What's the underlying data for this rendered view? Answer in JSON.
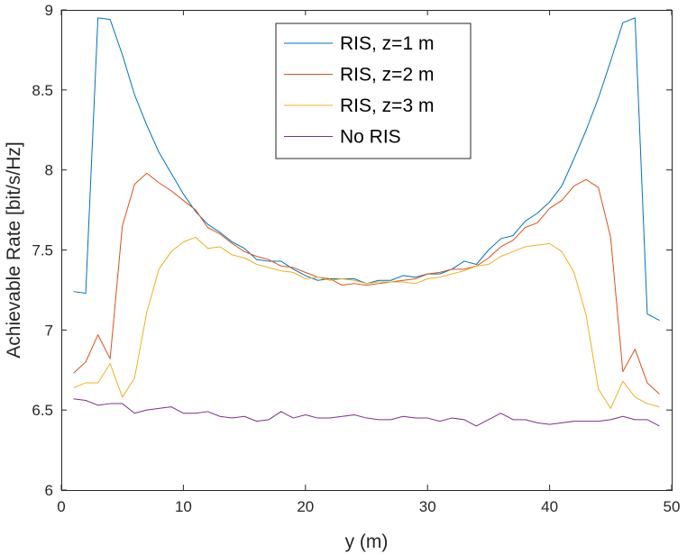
{
  "chart_data": {
    "type": "line",
    "xlabel": "y (m)",
    "ylabel": "Achievable Rate [bit/s/Hz]",
    "xlim": [
      0,
      50
    ],
    "ylim": [
      6,
      9
    ],
    "xticks": [
      "0",
      "10",
      "20",
      "30",
      "40",
      "50"
    ],
    "yticks": [
      "6",
      "6.5",
      "7",
      "7.5",
      "8",
      "8.5",
      "9"
    ],
    "grid": false,
    "legend_position": "top-center",
    "x": [
      1,
      2,
      3,
      4,
      5,
      6,
      7,
      8,
      9,
      10,
      11,
      12,
      13,
      14,
      15,
      16,
      17,
      18,
      19,
      20,
      21,
      22,
      23,
      24,
      25,
      26,
      27,
      28,
      29,
      30,
      31,
      32,
      33,
      34,
      35,
      36,
      37,
      38,
      39,
      40,
      41,
      42,
      43,
      44,
      45,
      46,
      47,
      48,
      49
    ],
    "series": [
      {
        "name": "RIS, z=1 m",
        "color": "#0072BD",
        "values": [
          7.24,
          7.23,
          8.95,
          8.94,
          8.72,
          8.47,
          8.28,
          8.11,
          7.98,
          7.85,
          7.74,
          7.66,
          7.61,
          7.55,
          7.51,
          7.44,
          7.43,
          7.43,
          7.38,
          7.34,
          7.31,
          7.32,
          7.32,
          7.32,
          7.29,
          7.31,
          7.31,
          7.34,
          7.33,
          7.35,
          7.35,
          7.38,
          7.43,
          7.41,
          7.5,
          7.57,
          7.59,
          7.68,
          7.73,
          7.8,
          7.9,
          8.07,
          8.25,
          8.45,
          8.68,
          8.92,
          8.95,
          7.1,
          7.06
        ]
      },
      {
        "name": "RIS, z=2 m",
        "color": "#D95319",
        "values": [
          6.73,
          6.8,
          6.97,
          6.82,
          7.65,
          7.91,
          7.98,
          7.92,
          7.87,
          7.81,
          7.75,
          7.64,
          7.6,
          7.54,
          7.49,
          7.46,
          7.44,
          7.4,
          7.39,
          7.36,
          7.33,
          7.32,
          7.28,
          7.29,
          7.28,
          7.29,
          7.3,
          7.31,
          7.32,
          7.35,
          7.36,
          7.38,
          7.38,
          7.4,
          7.45,
          7.52,
          7.56,
          7.64,
          7.67,
          7.76,
          7.81,
          7.9,
          7.94,
          7.89,
          7.58,
          6.74,
          6.88,
          6.67,
          6.6
        ]
      },
      {
        "name": "RIS, z=3 m",
        "color": "#EDB120",
        "values": [
          6.64,
          6.67,
          6.67,
          6.79,
          6.58,
          6.7,
          7.11,
          7.38,
          7.49,
          7.55,
          7.58,
          7.51,
          7.52,
          7.47,
          7.45,
          7.41,
          7.39,
          7.37,
          7.36,
          7.32,
          7.33,
          7.31,
          7.32,
          7.31,
          7.29,
          7.3,
          7.3,
          7.3,
          7.29,
          7.32,
          7.33,
          7.35,
          7.37,
          7.4,
          7.41,
          7.46,
          7.49,
          7.52,
          7.53,
          7.54,
          7.49,
          7.36,
          7.09,
          6.63,
          6.51,
          6.68,
          6.58,
          6.54,
          6.52
        ]
      },
      {
        "name": "No RIS",
        "color": "#7E2F8E",
        "values": [
          6.57,
          6.56,
          6.53,
          6.54,
          6.54,
          6.48,
          6.5,
          6.51,
          6.52,
          6.48,
          6.48,
          6.49,
          6.46,
          6.45,
          6.46,
          6.43,
          6.44,
          6.49,
          6.45,
          6.47,
          6.45,
          6.45,
          6.46,
          6.47,
          6.45,
          6.44,
          6.44,
          6.46,
          6.45,
          6.45,
          6.43,
          6.45,
          6.44,
          6.4,
          6.44,
          6.48,
          6.44,
          6.44,
          6.42,
          6.41,
          6.42,
          6.43,
          6.43,
          6.43,
          6.44,
          6.46,
          6.44,
          6.44,
          6.4
        ]
      }
    ]
  }
}
